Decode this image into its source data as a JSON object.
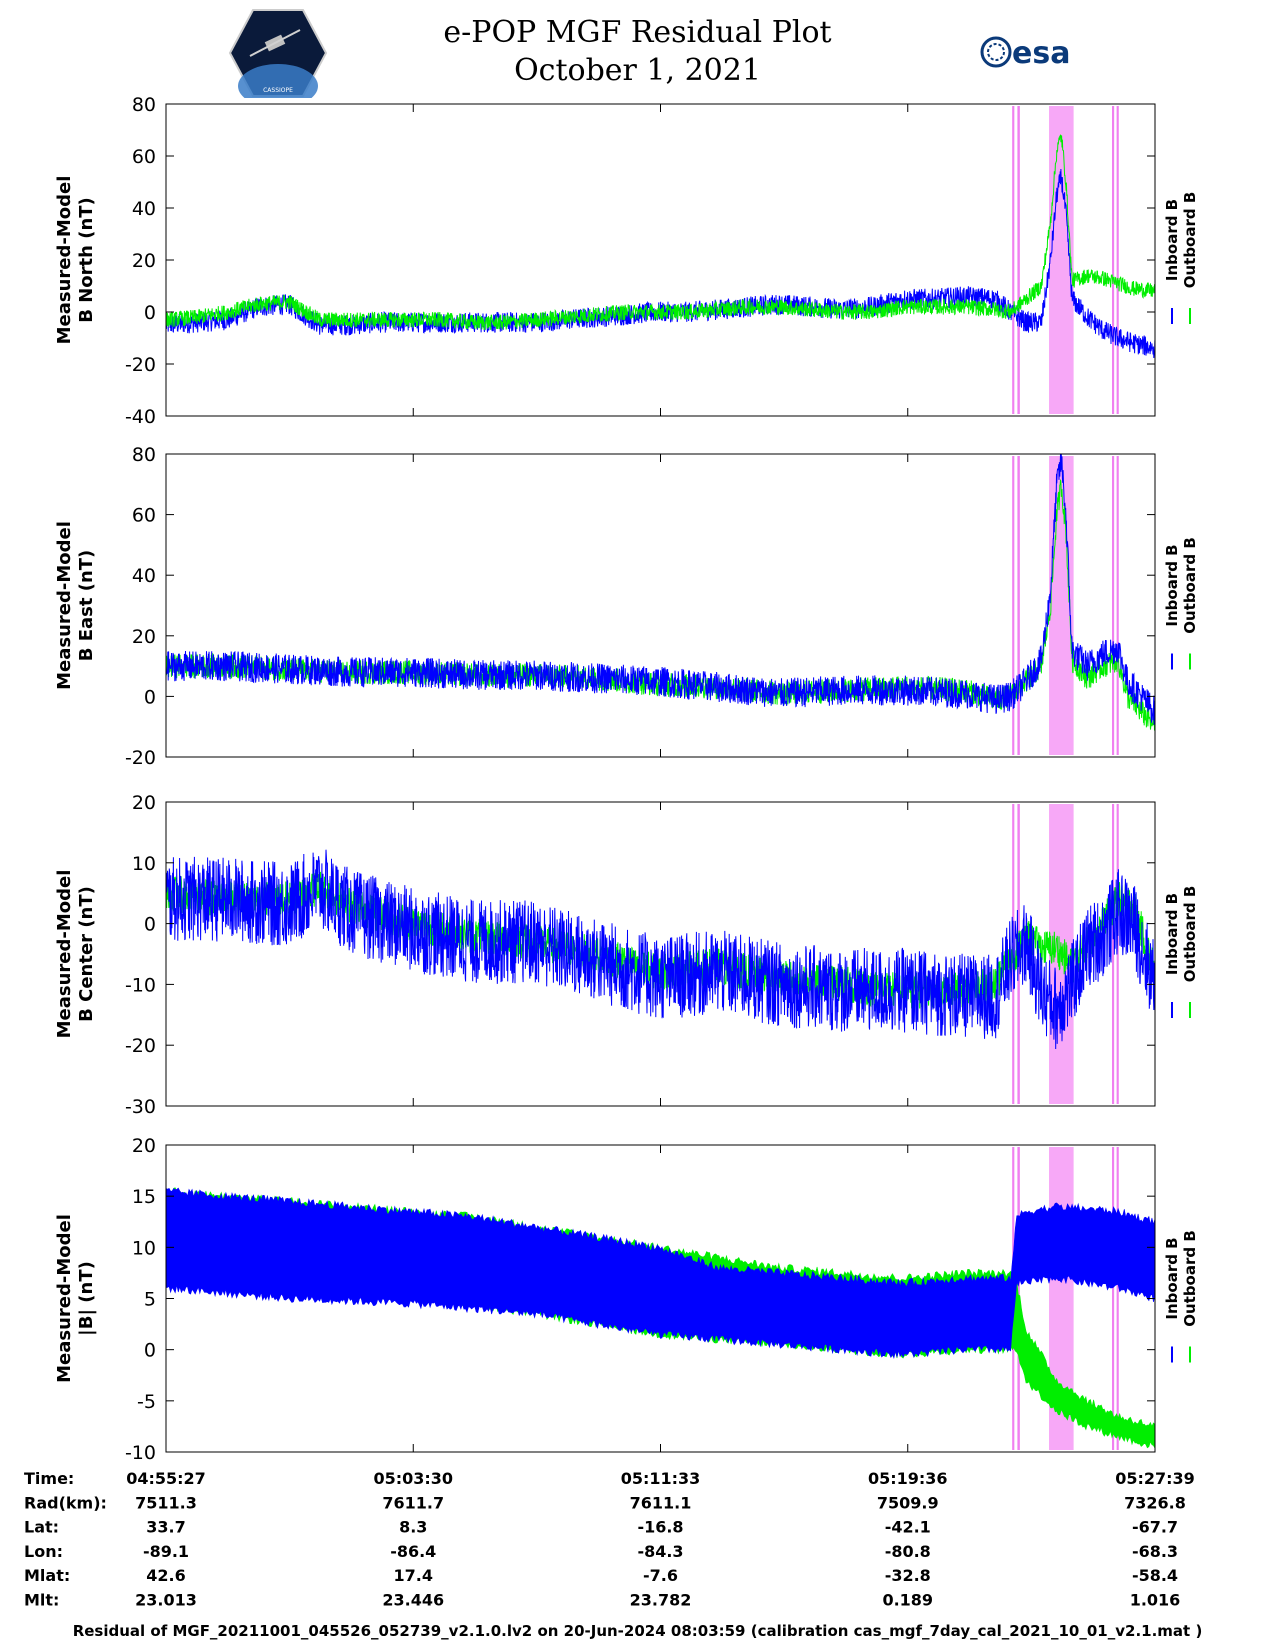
{
  "header": {
    "title_line1": "e-POP MGF Residual Plot",
    "title_line2": "October 1, 2021",
    "esa_logo_text": "esa",
    "cassiope_logo_text": "CASSIOPE"
  },
  "colors": {
    "inboard": "#0000ff",
    "outboard": "#00ee00",
    "highlight": "#f7a8f7",
    "highlight_line": "#f080f0"
  },
  "legend": {
    "inboard": "Inboard B",
    "outboard": "Outboard B"
  },
  "chart_data": [
    {
      "type": "line",
      "ylabel_lines": [
        "Measured-Model",
        "B North (nT)"
      ],
      "ylim": [
        -40,
        80
      ],
      "yticks": [
        "80",
        "60",
        "40",
        "20",
        "0",
        "-20",
        "-40"
      ],
      "x_range_min": [
        0,
        32.2
      ],
      "grid": false,
      "highlight_intervals_min": [
        [
          27.55,
          27.62
        ],
        [
          27.72,
          27.8
        ],
        [
          28.75,
          29.55
        ],
        [
          30.8,
          30.87
        ],
        [
          30.95,
          31.02
        ]
      ],
      "series": [
        {
          "name": "Inboard B",
          "color": "#0000ff",
          "noise": 8,
          "x": [
            0,
            1,
            2,
            3,
            4,
            5,
            6,
            7,
            8,
            9,
            10,
            11,
            12,
            13,
            14,
            15,
            16,
            17,
            18,
            19,
            20,
            21,
            22,
            23,
            24,
            25,
            26,
            27,
            27.5,
            28,
            28.5,
            28.8,
            29.0,
            29.15,
            29.3,
            29.5,
            30,
            30.5,
            31,
            31.5,
            32.2
          ],
          "values": [
            -5,
            -4,
            -3,
            2,
            3,
            -5,
            -5,
            -4,
            -4,
            -4,
            -4,
            -4,
            -4,
            -3,
            -2,
            -1,
            0,
            0,
            1,
            2,
            3,
            2,
            1,
            2,
            5,
            5,
            6,
            5,
            0,
            -4,
            -4,
            20,
            45,
            52,
            38,
            5,
            -2,
            -7,
            -10,
            -12,
            -14
          ]
        },
        {
          "name": "Outboard B",
          "color": "#00ee00",
          "noise": 6,
          "x": [
            0,
            1,
            2,
            3,
            4,
            5,
            6,
            7,
            8,
            9,
            10,
            11,
            12,
            13,
            14,
            15,
            16,
            17,
            18,
            19,
            20,
            21,
            22,
            23,
            24,
            25,
            26,
            27,
            27.5,
            28,
            28.5,
            28.8,
            29.0,
            29.15,
            29.3,
            29.5,
            30,
            30.5,
            31,
            31.5,
            32.2
          ],
          "values": [
            -3,
            -2,
            0,
            3,
            4,
            -3,
            -3,
            -3,
            -3,
            -3,
            -4,
            -4,
            -3,
            -2,
            -1,
            0,
            0,
            0,
            1,
            2,
            2,
            1,
            0,
            0,
            2,
            2,
            2,
            1,
            0,
            5,
            10,
            35,
            62,
            68,
            50,
            12,
            14,
            13,
            11,
            9,
            8
          ]
        }
      ]
    },
    {
      "type": "line",
      "ylabel_lines": [
        "Measured-Model",
        "B East (nT)"
      ],
      "ylim": [
        -20,
        80
      ],
      "yticks": [
        "80",
        "60",
        "40",
        "20",
        "0",
        "-20"
      ],
      "x_range_min": [
        0,
        32.2
      ],
      "grid": false,
      "highlight_intervals_min": [
        [
          27.55,
          27.62
        ],
        [
          27.72,
          27.8
        ],
        [
          28.75,
          29.55
        ],
        [
          30.8,
          30.87
        ],
        [
          30.95,
          31.02
        ]
      ],
      "series": [
        {
          "name": "Outboard B",
          "color": "#00ee00",
          "noise": 8,
          "x": [
            0,
            2,
            4,
            6,
            8,
            10,
            12,
            14,
            16,
            18,
            20,
            22,
            24,
            26,
            27,
            27.5,
            28,
            28.5,
            28.8,
            29.0,
            29.15,
            29.3,
            29.5,
            30,
            30.5,
            31,
            31.3,
            32.2
          ],
          "values": [
            10,
            10,
            9,
            8,
            8,
            7,
            7,
            6,
            4,
            3,
            1,
            2,
            3,
            2,
            -1,
            0,
            5,
            10,
            30,
            60,
            70,
            55,
            12,
            6,
            10,
            12,
            0,
            -10
          ]
        },
        {
          "name": "Inboard B",
          "color": "#0000ff",
          "noise": 10,
          "x": [
            0,
            2,
            4,
            6,
            8,
            10,
            12,
            14,
            16,
            18,
            20,
            22,
            24,
            26,
            27,
            27.5,
            28,
            28.5,
            28.8,
            29.0,
            29.15,
            29.3,
            29.5,
            30,
            30.5,
            31,
            31.3,
            32.2
          ],
          "values": [
            10,
            10,
            9,
            8,
            8,
            7,
            7,
            6,
            5,
            3,
            1,
            2,
            2,
            1,
            -1,
            0,
            5,
            12,
            35,
            70,
            78,
            60,
            15,
            10,
            14,
            16,
            5,
            -5
          ]
        }
      ]
    },
    {
      "type": "line",
      "ylabel_lines": [
        "Measured-Model",
        "B Center (nT)"
      ],
      "ylim": [
        -30,
        20
      ],
      "yticks": [
        "20",
        "10",
        "0",
        "-10",
        "-20",
        "-30"
      ],
      "x_range_min": [
        0,
        32.2
      ],
      "grid": false,
      "highlight_intervals_min": [
        [
          27.55,
          27.62
        ],
        [
          27.72,
          27.8
        ],
        [
          28.75,
          29.55
        ],
        [
          30.8,
          30.87
        ],
        [
          30.95,
          31.02
        ]
      ],
      "series": [
        {
          "name": "Outboard B",
          "color": "#00ee00",
          "noise": 6,
          "x": [
            0,
            2,
            4,
            5,
            6,
            8,
            10,
            12,
            14,
            16,
            18,
            20,
            22,
            24,
            26,
            27,
            27.5,
            28,
            28.5,
            29,
            29.5,
            30,
            30.5,
            31,
            31.5,
            32.2
          ],
          "values": [
            5,
            4,
            4,
            6,
            3,
            0,
            -2,
            -3,
            -5,
            -8,
            -7,
            -9,
            -10,
            -11,
            -11,
            -10,
            -6,
            -2,
            -4,
            -4,
            -7,
            -3,
            0,
            4,
            3,
            -8
          ]
        },
        {
          "name": "Inboard B",
          "color": "#0000ff",
          "noise": 14,
          "x": [
            0,
            2,
            4,
            5,
            6,
            8,
            10,
            12,
            14,
            16,
            18,
            20,
            22,
            24,
            26,
            27,
            27.5,
            28,
            28.5,
            29,
            29.5,
            30,
            30.5,
            31,
            31.5,
            32.2
          ],
          "values": [
            4,
            4,
            3,
            6,
            2,
            -1,
            -3,
            -3,
            -6,
            -9,
            -8,
            -10,
            -11,
            -11,
            -12,
            -12,
            -6,
            -3,
            -11,
            -14,
            -10,
            -4,
            -2,
            2,
            0,
            -10
          ]
        }
      ]
    },
    {
      "type": "line",
      "ylabel_lines": [
        "Measured-Model",
        "|B| (nT)"
      ],
      "ylim": [
        -10,
        20
      ],
      "yticks": [
        "20",
        "15",
        "10",
        "5",
        "0",
        "-5",
        "-10"
      ],
      "x_range_min": [
        0,
        32.2
      ],
      "grid": false,
      "highlight_intervals_min": [
        [
          27.55,
          27.62
        ],
        [
          27.72,
          27.8
        ],
        [
          28.75,
          29.55
        ],
        [
          30.8,
          30.87
        ],
        [
          30.95,
          31.02
        ]
      ],
      "series": [
        {
          "name": "Outboard B",
          "color": "#00ee00",
          "band": true,
          "x": [
            0,
            4,
            8,
            10,
            12,
            14,
            16,
            18,
            20,
            22,
            24,
            26,
            27.5,
            27.7,
            28,
            29,
            30,
            31,
            32.2
          ],
          "top": [
            15.5,
            14.5,
            13.5,
            13,
            12,
            11,
            10,
            9,
            8,
            7.5,
            7,
            7.5,
            7.5,
            6.5,
            2,
            -3,
            -5,
            -6.5,
            -7.5
          ],
          "bottom": [
            7,
            6.5,
            5.5,
            4.5,
            3.5,
            2.5,
            1.5,
            1,
            0.5,
            0,
            -0.5,
            0,
            0,
            0,
            -3,
            -6,
            -7.5,
            -8.5,
            -9.5
          ]
        },
        {
          "name": "Inboard B",
          "color": "#0000ff",
          "band": true,
          "x": [
            0,
            4,
            8,
            10,
            12,
            14,
            16,
            18,
            20,
            22,
            24,
            26,
            27.5,
            27.7,
            28,
            29,
            30,
            31,
            32.2
          ],
          "top": [
            15.5,
            14.5,
            13.5,
            13,
            12,
            11,
            10,
            8,
            7.5,
            7,
            6.5,
            7,
            7,
            13,
            13.5,
            14,
            13.8,
            13.5,
            12.5
          ],
          "bottom": [
            6,
            5,
            4.5,
            4,
            3.5,
            2.5,
            1.5,
            1,
            0.5,
            0,
            -0.5,
            0,
            0,
            6.5,
            6.5,
            7,
            6.5,
            6,
            5
          ]
        }
      ]
    }
  ],
  "x_axis_table": {
    "row_labels": [
      "Time:",
      "Rad(km):",
      "Lat:",
      "Lon:",
      "Mlat:",
      "Mlt:"
    ],
    "columns": [
      {
        "x_min": 0,
        "values": [
          "04:55:27",
          "7511.3",
          "33.7",
          "-89.1",
          "42.6",
          "23.013"
        ]
      },
      {
        "x_min": 8.05,
        "values": [
          "05:03:30",
          "7611.7",
          "8.3",
          "-86.4",
          "17.4",
          "23.446"
        ]
      },
      {
        "x_min": 16.1,
        "values": [
          "05:11:33",
          "7611.1",
          "-16.8",
          "-84.3",
          "-7.6",
          "23.782"
        ]
      },
      {
        "x_min": 24.15,
        "values": [
          "05:19:36",
          "7509.9",
          "-42.1",
          "-80.8",
          "-32.8",
          "0.189"
        ]
      },
      {
        "x_min": 32.2,
        "values": [
          "05:27:39",
          "7326.8",
          "-67.7",
          "-68.3",
          "-58.4",
          "1.016"
        ]
      }
    ]
  },
  "footer": "Residual of MGF_20211001_045526_052739_v2.1.0.lv2 on 20-Jun-2024 08:03:59 (calibration cas_mgf_7day_cal_2021_10_01_v2.1.mat )"
}
